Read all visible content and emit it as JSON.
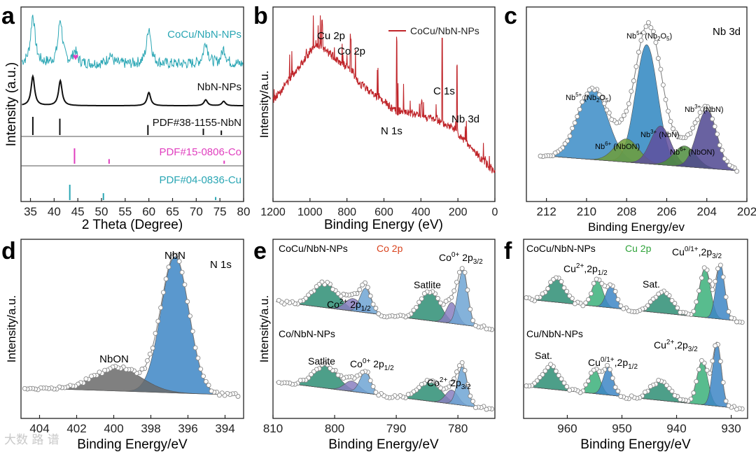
{
  "watermark": "大数 路 谱",
  "chart_data": [
    {
      "panel": "a",
      "type": "line",
      "xlabel": "2 Theta (Degree)",
      "ylabel": "Intensity (a.u.)",
      "xlim": [
        33,
        80
      ],
      "xticks": [
        35,
        40,
        45,
        50,
        55,
        60,
        65,
        70,
        75,
        80
      ],
      "series": [
        {
          "name": "CoCu/NbN-NPs",
          "color": "#2aa6b4",
          "peaks": [
            [
              35.5,
              1.0
            ],
            [
              41.3,
              0.9
            ],
            [
              44.4,
              0.25
            ],
            [
              51.8,
              0.2
            ],
            [
              60.0,
              0.75
            ],
            [
              72.0,
              0.45
            ],
            [
              75.8,
              0.3
            ]
          ],
          "marker": {
            "x": 44.4,
            "symbol": "♥",
            "color": "#e03fbf"
          }
        },
        {
          "name": "NbN-NPs",
          "color": "#111111",
          "peaks": [
            [
              35.5,
              1.0
            ],
            [
              41.3,
              0.85
            ],
            [
              60.0,
              0.45
            ],
            [
              72.0,
              0.2
            ],
            [
              75.8,
              0.15
            ]
          ]
        }
      ],
      "references": [
        {
          "label": "PDF#38-1155-NbN",
          "color": "#111111",
          "lines": [
            [
              35.5,
              1.0
            ],
            [
              41.2,
              0.9
            ],
            [
              59.8,
              0.55
            ],
            [
              71.5,
              0.35
            ],
            [
              75.3,
              0.25
            ]
          ]
        },
        {
          "label": "PDF#15-0806-Co",
          "color": "#e03fbf",
          "lines": [
            [
              44.3,
              1.0
            ],
            [
              51.6,
              0.3
            ],
            [
              75.9,
              0.2
            ]
          ]
        },
        {
          "label": "PDF#04-0836-Cu",
          "color": "#2aa6b4",
          "lines": [
            [
              43.3,
              1.0
            ],
            [
              50.4,
              0.45
            ],
            [
              74.1,
              0.2
            ]
          ]
        }
      ]
    },
    {
      "panel": "b",
      "type": "line",
      "xlabel": "Binding Energy (eV)",
      "ylabel": "Intensity/a.u.",
      "xlim": [
        1200,
        0
      ],
      "xticks": [
        1200,
        1000,
        800,
        600,
        400,
        200,
        0
      ],
      "series": [
        {
          "name": "CoCu/NbN-NPs",
          "color": "#c0262b"
        }
      ],
      "annotations": [
        "Cu 2p",
        "Co 2p",
        "C 1s",
        "N 1s",
        "Nb 3d"
      ]
    },
    {
      "panel": "c",
      "type": "line",
      "title": "Nb 3d",
      "xlabel": "Binding Energy/ev",
      "xlim": [
        213,
        202
      ],
      "xticks": [
        212,
        210,
        208,
        206,
        204,
        202
      ],
      "components": [
        {
          "center": 209.7,
          "height": 0.55,
          "width": 0.75,
          "color": "#3b8cc7",
          "label": "Nb5+ (Nb2O5)"
        },
        {
          "center": 207.0,
          "height": 0.92,
          "width": 0.55,
          "color": "#2e86c1",
          "label": "Nb5+ (Nb2O5)"
        },
        {
          "center": 208.0,
          "height": 0.18,
          "width": 0.6,
          "color": "#6f9e3a",
          "label": "Nb6+ (NbON)"
        },
        {
          "center": 206.3,
          "height": 0.3,
          "width": 0.5,
          "color": "#5f4f9e",
          "label": "Nb3+ (NbN)"
        },
        {
          "center": 205.1,
          "height": 0.16,
          "width": 0.55,
          "color": "#4d8d3d",
          "label": "Nb6+ (NbON)"
        },
        {
          "center": 204.0,
          "height": 0.45,
          "width": 0.5,
          "color": "#4f4690",
          "label": "Nb3+ (NbN)"
        }
      ]
    },
    {
      "panel": "d",
      "type": "line",
      "title": "N 1s",
      "xlabel": "Binding Energy/eV",
      "ylabel": "Intensity/a.u.",
      "xlim": [
        405,
        393
      ],
      "xticks": [
        404,
        402,
        400,
        398,
        396,
        394
      ],
      "components": [
        {
          "center": 396.7,
          "height": 1.0,
          "width": 0.75,
          "color": "#3d86c6",
          "label": "NbN"
        },
        {
          "center": 399.8,
          "height": 0.17,
          "width": 1.3,
          "color": "#6a6a6a",
          "label": "NbON"
        }
      ]
    },
    {
      "panel": "e",
      "type": "line",
      "title": "Co 2p",
      "xlabel": "Binding Energy/eV",
      "ylabel": "Intensity/a.u.",
      "xlim": [
        810,
        774
      ],
      "xticks": [
        810,
        800,
        790,
        780
      ],
      "traces": [
        {
          "name": "CoCu/NbN-NPs",
          "components": [
            {
              "center": 801.5,
              "height": 0.35,
              "width": 2.0,
              "color": "#2e8e74"
            },
            {
              "center": 797.0,
              "height": 0.18,
              "width": 1.3,
              "color": "#8a7fbf"
            },
            {
              "center": 795.0,
              "height": 0.35,
              "width": 0.9,
              "color": "#6ea4d4"
            },
            {
              "center": 784.5,
              "height": 0.42,
              "width": 1.6,
              "color": "#2e8e74"
            },
            {
              "center": 781.0,
              "height": 0.3,
              "width": 0.9,
              "color": "#8a7fbf"
            },
            {
              "center": 779.2,
              "height": 0.78,
              "width": 0.8,
              "color": "#6ea4d4"
            }
          ],
          "labels": [
            "Co2+ 2p1/2",
            "Satlite",
            "Co0+ 2p3/2"
          ]
        },
        {
          "name": "Co/NbN-NPs",
          "components": [
            {
              "center": 801.5,
              "height": 0.33,
              "width": 2.0,
              "color": "#2e8e74"
            },
            {
              "center": 797.2,
              "height": 0.15,
              "width": 1.2,
              "color": "#8a7fbf"
            },
            {
              "center": 795.0,
              "height": 0.3,
              "width": 0.9,
              "color": "#6ea4d4"
            },
            {
              "center": 784.5,
              "height": 0.28,
              "width": 1.8,
              "color": "#2e8e74"
            },
            {
              "center": 781.0,
              "height": 0.2,
              "width": 1.0,
              "color": "#8a7fbf"
            },
            {
              "center": 779.3,
              "height": 0.55,
              "width": 0.8,
              "color": "#6ea4d4"
            }
          ],
          "labels": [
            "Satlite",
            "Co0+ 2p1/2",
            "Co2+ 2p3/2"
          ]
        }
      ]
    },
    {
      "panel": "f",
      "type": "line",
      "title": "Cu 2p",
      "xlabel": "Binding Energy/eV",
      "xlim": [
        968,
        927
      ],
      "xticks": [
        960,
        950,
        940,
        930
      ],
      "traces": [
        {
          "name": "CoCu/NbN-NPs",
          "components": [
            {
              "center": 962.0,
              "height": 0.35,
              "width": 1.5,
              "color": "#2e8e74"
            },
            {
              "center": 954.5,
              "height": 0.38,
              "width": 1.0,
              "color": "#3bb07a"
            },
            {
              "center": 952.0,
              "height": 0.33,
              "width": 0.9,
              "color": "#3d86c6"
            },
            {
              "center": 942.5,
              "height": 0.3,
              "width": 1.7,
              "color": "#2e8e74"
            },
            {
              "center": 934.8,
              "height": 0.7,
              "width": 1.0,
              "color": "#3bb07a"
            },
            {
              "center": 932.0,
              "height": 0.78,
              "width": 0.8,
              "color": "#3d86c6"
            }
          ],
          "labels": [
            "Cu2+,2p1/2",
            "Sat.",
            "Cu0/1+,2p3/2"
          ]
        },
        {
          "name": "Cu/NbN-NPs",
          "components": [
            {
              "center": 963.0,
              "height": 0.33,
              "width": 1.6,
              "color": "#2e8e74"
            },
            {
              "center": 955.0,
              "height": 0.35,
              "width": 1.0,
              "color": "#3bb07a"
            },
            {
              "center": 952.5,
              "height": 0.4,
              "width": 0.9,
              "color": "#3d86c6"
            },
            {
              "center": 943.0,
              "height": 0.27,
              "width": 1.8,
              "color": "#2e8e74"
            },
            {
              "center": 935.3,
              "height": 0.62,
              "width": 1.0,
              "color": "#3bb07a"
            },
            {
              "center": 932.6,
              "height": 0.9,
              "width": 0.8,
              "color": "#3d86c6"
            }
          ],
          "labels": [
            "Sat.",
            "Cu0/1+,2p1/2",
            "Cu2+,2p3/2"
          ]
        }
      ]
    }
  ],
  "text": {
    "a": {
      "letter": "a",
      "xlabel": "2 Theta (Degree)",
      "ylabel": "Intensity (a.u.)",
      "s1": "CoCu/NbN-NPs",
      "s2": "NbN-NPs",
      "r1": "PDF#38-1155-NbN",
      "r2": "PDF#15-0806-Co",
      "r3": "PDF#04-0836-Cu",
      "heart": "♥"
    },
    "b": {
      "letter": "b",
      "xlabel": "Binding Energy (eV)",
      "ylabel": "Intensity/a.u.",
      "legend": "CoCu/NbN-NPs",
      "cu": "Cu 2p",
      "co": "Co 2p",
      "c1s": "C 1s",
      "n1s": "N 1s",
      "nb": "Nb 3d"
    },
    "c": {
      "letter": "c",
      "xlabel": "Binding Energy/ev",
      "title": "Nb 3d",
      "nb5": "Nb",
      "nb3": "Nb",
      "nb6": "Nb",
      "sup5": "5+",
      "sup3": "3+",
      "sup6": "6+",
      "nb2o5": "(Nb",
      "nbon": "(NbON)",
      "nbn": "(NbN)",
      "sub2": "2",
      "sub5": "5",
      "o": "O",
      "close": ")"
    },
    "d": {
      "letter": "d",
      "xlabel": "Binding Energy/eV",
      "ylabel": "Intensity/a.u.",
      "title": "N 1s",
      "nbn": "NbN",
      "nbon": "NbON"
    },
    "e": {
      "letter": "e",
      "xlabel": "Binding Energy/eV",
      "ylabel": "Intensity/a.u.",
      "sample1": "CoCu/NbN-NPs",
      "sample2": "Co/NbN-NPs",
      "title": "Co 2p",
      "co": "Co",
      "sup0": "0+",
      "sup2": "2+",
      "p32": "2p",
      "p12": "2p",
      "sub32": "3/2",
      "sub12": "1/2",
      "satlite": "Satlite"
    },
    "f": {
      "letter": "f",
      "xlabel": "Binding Energy/eV",
      "sample1": "CoCu/NbN-NPs",
      "sample2": "Cu/NbN-NPs",
      "title": "Cu 2p",
      "cu": "Cu",
      "sup2": "2+",
      "sup01": "0/1+",
      "p": ",2p",
      "sub32": "3/2",
      "sub12": "1/2",
      "sat": "Sat."
    }
  },
  "colors": {
    "teal": "#2aa6b4",
    "magenta": "#e03fbf",
    "red": "#c0262b",
    "green_title": "#2fa33a",
    "orange_title": "#d9431e"
  }
}
